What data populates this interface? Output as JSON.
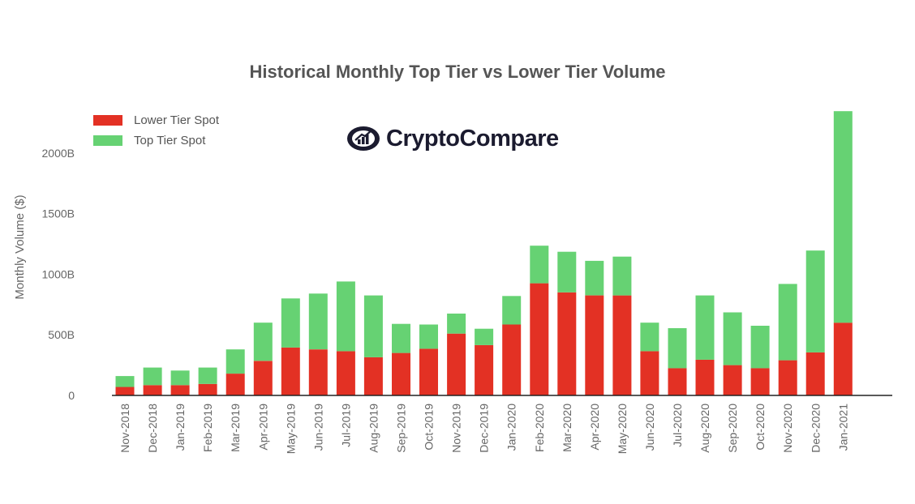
{
  "chart_data": {
    "type": "bar",
    "stacked": true,
    "title": "Historical Monthly Top Tier vs Lower Tier Volume",
    "ylabel": "Monthly Volume ($)",
    "xlabel": "",
    "ylim": [
      0,
      2350
    ],
    "yticks": [
      0,
      500,
      1000,
      1500,
      2000
    ],
    "ytick_labels": [
      "0",
      "500B",
      "1000B",
      "1500B",
      "2000B"
    ],
    "legend_position": "top-left",
    "grid": false,
    "categories": [
      "Nov-2018",
      "Dec-2018",
      "Jan-2019",
      "Feb-2019",
      "Mar-2019",
      "Apr-2019",
      "May-2019",
      "Jun-2019",
      "Jul-2019",
      "Aug-2019",
      "Sep-2019",
      "Oct-2019",
      "Nov-2019",
      "Dec-2019",
      "Jan-2020",
      "Feb-2020",
      "Mar-2020",
      "Apr-2020",
      "May-2020",
      "Jun-2020",
      "Jul-2020",
      "Aug-2020",
      "Sep-2020",
      "Oct-2020",
      "Nov-2020",
      "Dec-2020",
      "Jan-2021"
    ],
    "series": [
      {
        "name": "Lower Tier Spot",
        "color": "#e33124",
        "values": [
          70,
          85,
          85,
          95,
          180,
          285,
          395,
          380,
          365,
          315,
          350,
          385,
          510,
          415,
          585,
          925,
          850,
          825,
          825,
          365,
          225,
          295,
          250,
          225,
          290,
          355,
          600
        ]
      },
      {
        "name": "Top Tier Spot",
        "color": "#66d273",
        "values": [
          90,
          145,
          120,
          135,
          200,
          315,
          405,
          460,
          575,
          510,
          240,
          200,
          165,
          135,
          235,
          310,
          335,
          285,
          320,
          235,
          330,
          530,
          435,
          350,
          630,
          840,
          1745
        ]
      }
    ]
  },
  "logo": {
    "text": "CryptoCompare",
    "icon": "cryptocompare-logo-icon"
  }
}
